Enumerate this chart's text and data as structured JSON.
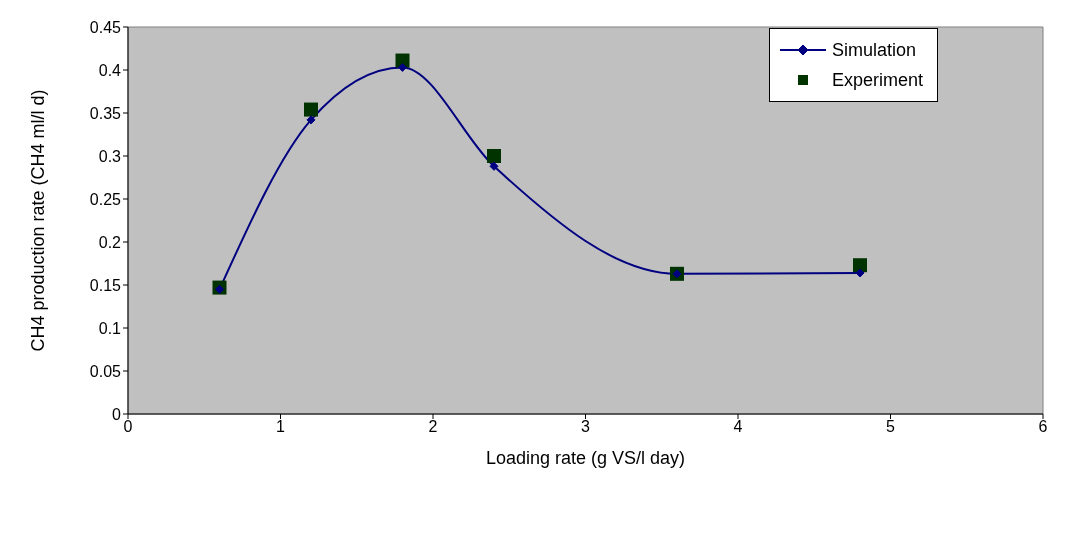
{
  "chart_data": {
    "type": "line",
    "xlabel": "Loading rate (g VS/l day)",
    "ylabel": "CH4 production rate (CH4 ml/l d)",
    "x": [
      0.6,
      1.2,
      1.8,
      2.4,
      3.6,
      4.8
    ],
    "series": [
      {
        "name": "Simulation",
        "color": "#000080",
        "marker": "diamond",
        "values": [
          0.145,
          0.342,
          0.403,
          0.288,
          0.163,
          0.164
        ]
      },
      {
        "name": "Experiment",
        "type": "scatter",
        "color": "#003300",
        "marker": "square",
        "values": [
          0.147,
          0.354,
          0.411,
          0.3,
          0.163,
          0.173
        ]
      }
    ],
    "xlim": [
      0,
      6
    ],
    "xticks": [
      0,
      1,
      2,
      3,
      4,
      5,
      6
    ],
    "ylim": [
      0,
      0.45
    ],
    "yticks": [
      0,
      0.05,
      0.1,
      0.15,
      0.2,
      0.25,
      0.3,
      0.35,
      0.4,
      0.45
    ],
    "grid": false,
    "legend": "top right"
  }
}
